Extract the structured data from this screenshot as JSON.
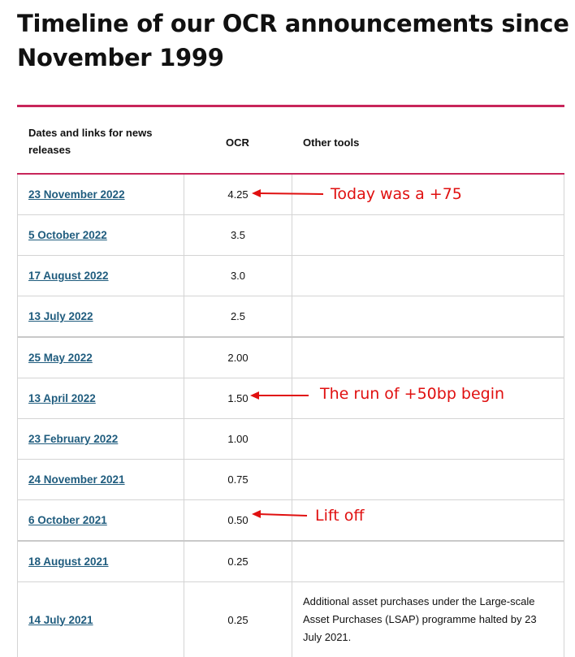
{
  "page": {
    "title_line1": "Timeline of our OCR announcements since",
    "title_line2": "November 1999"
  },
  "table": {
    "headers": {
      "date": "Dates and links for news releases",
      "ocr": "OCR",
      "other": "Other tools"
    },
    "rows": [
      {
        "date": "23 November 2022",
        "ocr": "4.25",
        "other": ""
      },
      {
        "date": "5 October 2022",
        "ocr": "3.5",
        "other": ""
      },
      {
        "date": "17 August 2022",
        "ocr": "3.0",
        "other": ""
      },
      {
        "date": "13 July 2022",
        "ocr": "2.5",
        "other": ""
      },
      {
        "date": "25 May 2022",
        "ocr": "2.00",
        "other": ""
      },
      {
        "date": "13 April 2022",
        "ocr": "1.50",
        "other": ""
      },
      {
        "date": "23 February 2022",
        "ocr": "1.00",
        "other": ""
      },
      {
        "date": "24 November 2021",
        "ocr": "0.75",
        "other": ""
      },
      {
        "date": "6 October 2021",
        "ocr": "0.50",
        "other": ""
      },
      {
        "date": "18 August 2021",
        "ocr": "0.25",
        "other": ""
      },
      {
        "date": "14 July 2021",
        "ocr": "0.25",
        "other": "Additional asset purchases under the Large-scale Asset Purchases (LSAP) programme halted by 23 July 2021."
      }
    ]
  },
  "annotations": [
    {
      "text": "Today was a +75",
      "row": 0
    },
    {
      "text": "The run of +50bp begin",
      "row": 5
    },
    {
      "text": "Lift off",
      "row": 8
    }
  ],
  "colors": {
    "accent_rule": "#c8255a",
    "link": "#1f5c7e",
    "annotation": "#e01010"
  }
}
